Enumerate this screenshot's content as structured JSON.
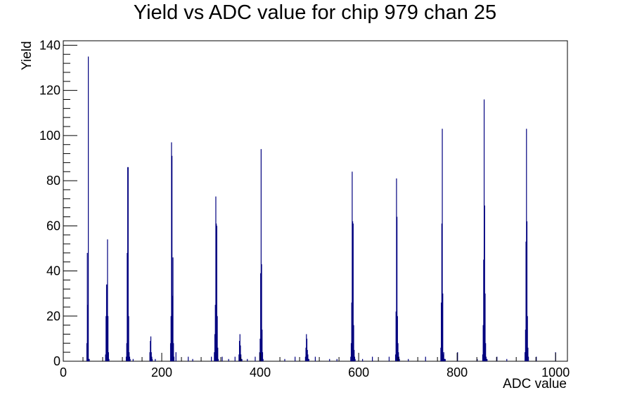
{
  "chart_data": {
    "type": "bar",
    "title": "Yield vs ADC value for chip 979 chan 25",
    "xlabel": "ADC value",
    "ylabel": "Yield",
    "xlim": [
      0,
      1024
    ],
    "ylim": [
      0,
      142
    ],
    "grid": false,
    "legend": "none",
    "line_color": "#00007f",
    "x_ticks": [
      0,
      200,
      400,
      600,
      800,
      1000
    ],
    "y_ticks": [
      0,
      20,
      40,
      60,
      80,
      100,
      120,
      140
    ],
    "x": [
      47,
      48,
      49,
      50,
      51,
      52,
      85,
      86,
      87,
      88,
      89,
      90,
      91,
      92,
      127,
      128,
      129,
      130,
      131,
      132,
      133,
      134,
      135,
      175,
      176,
      177,
      178,
      179,
      180,
      217,
      218,
      219,
      220,
      221,
      222,
      223,
      224,
      306,
      307,
      308,
      309,
      310,
      311,
      312,
      313,
      314,
      356,
      357,
      358,
      359,
      360,
      361,
      362,
      398,
      399,
      400,
      401,
      402,
      403,
      404,
      405,
      491,
      492,
      493,
      494,
      495,
      496,
      497,
      498,
      583,
      584,
      585,
      586,
      587,
      588,
      589,
      590,
      591,
      592,
      674,
      675,
      676,
      677,
      678,
      679,
      680,
      681,
      682,
      766,
      767,
      768,
      769,
      770,
      771,
      772,
      773,
      774,
      775,
      851,
      852,
      853,
      854,
      855,
      856,
      857,
      858,
      859,
      860,
      937,
      938,
      939,
      940,
      941,
      942,
      943,
      944,
      141,
      186,
      228,
      253,
      262,
      300,
      322,
      335,
      348,
      373,
      389,
      449,
      470,
      511,
      540,
      555,
      607,
      627,
      661,
      700,
      735,
      800,
      840,
      880,
      900,
      960,
      999
    ],
    "values": [
      8,
      48,
      25,
      135,
      1,
      1,
      3,
      20,
      34,
      34,
      54,
      20,
      4,
      1,
      2,
      8,
      48,
      86,
      86,
      20,
      4,
      2,
      1,
      4,
      9,
      11,
      4,
      2,
      1,
      8,
      20,
      97,
      91,
      29,
      46,
      8,
      2,
      4,
      12,
      25,
      73,
      61,
      60,
      20,
      6,
      1,
      3,
      9,
      12,
      7,
      3,
      1,
      1,
      4,
      10,
      39,
      94,
      43,
      14,
      4,
      1,
      2,
      6,
      12,
      10,
      5,
      3,
      1,
      1,
      2,
      8,
      26,
      84,
      62,
      61,
      16,
      5,
      2,
      1,
      3,
      22,
      81,
      64,
      20,
      8,
      4,
      2,
      1,
      6,
      26,
      61,
      103,
      30,
      3,
      4,
      1,
      1,
      1,
      3,
      16,
      45,
      116,
      69,
      30,
      8,
      2,
      1,
      1,
      4,
      14,
      53,
      103,
      62,
      20,
      6,
      2,
      1,
      1,
      4,
      2,
      1,
      2,
      2,
      1,
      2,
      1,
      2,
      1,
      2,
      2,
      1,
      1,
      1,
      2,
      2,
      1,
      2,
      4,
      1,
      2,
      1,
      2,
      4
    ]
  }
}
